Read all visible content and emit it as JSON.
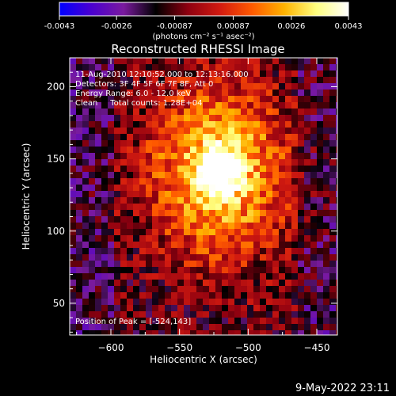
{
  "colorbar": {
    "tick_labels": [
      "-0.0043",
      "-0.0026",
      "-0.00087",
      "0.00087",
      "0.0026",
      "0.0043"
    ],
    "units": "(photons cm⁻² s⁻¹ asec⁻²)",
    "range": [
      -0.0043,
      0.0043
    ],
    "colormap": [
      "#0000ff",
      "#4b00d0",
      "#7a1a9e",
      "#000000",
      "#8e0010",
      "#d11a10",
      "#ff5a00",
      "#ffb300",
      "#ffff80",
      "#ffffff"
    ]
  },
  "chart_data": {
    "type": "heatmap",
    "title": "Reconstructed RHESSI Image",
    "xlabel": "Heliocentric X (arcsec)",
    "ylabel": "Heliocentric Y (arcsec)",
    "xlim": [
      -630,
      -435
    ],
    "ylim": [
      28,
      220
    ],
    "x_ticks": [
      -600,
      -550,
      -500,
      -450
    ],
    "y_ticks": [
      50,
      100,
      150,
      200
    ],
    "x_tick_labels": [
      "−600",
      "−550",
      "−500",
      "−450"
    ],
    "y_tick_labels": [
      "50",
      "100",
      "150",
      "200"
    ],
    "peak": [
      -524,
      143
    ],
    "annotations": [
      "11-Aug-2010 12:10:52.000 to 12:13:16.000",
      "Detectors: 3F 4F 5F 6F 7F 8F, Att 0",
      "Energy Range: 6.0 - 12.0 keV",
      "Clean     Total counts: 1.28E+04"
    ],
    "peak_label": "Position of Peak = [-524,143]"
  },
  "footer": {
    "timestamp": "9-May-2022 23:11"
  }
}
